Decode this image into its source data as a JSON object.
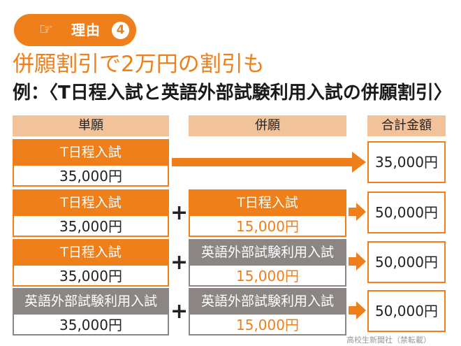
{
  "badge": {
    "hand_icon": "☞",
    "label": "理由",
    "number": "4"
  },
  "headline": "併願割引で2万円の割引も",
  "example": "例：〈T日程入試と英語外部試験利用入試の併願割引〉",
  "columns": {
    "single": "単願",
    "combined": "併願",
    "total": "合計金額"
  },
  "rows": [
    {
      "single": {
        "name": "T日程入試",
        "price": "35,000円"
      },
      "total": "35,000円"
    },
    {
      "single": {
        "name": "T日程入試",
        "price": "35,000円"
      },
      "combined": {
        "name": "T日程入試",
        "price": "15,000円"
      },
      "plus": "+",
      "total": "50,000円"
    },
    {
      "single": {
        "name": "T日程入試",
        "price": "35,000円"
      },
      "combined": {
        "name": "英語外部試験利用入試",
        "price": "15,000円"
      },
      "plus": "+",
      "total": "50,000円"
    },
    {
      "single": {
        "name": "英語外部試験利用入試",
        "price": "35,000円"
      },
      "combined": {
        "name": "英語外部試験利用入試",
        "price": "15,000円"
      },
      "plus": "+",
      "total": "50,000円"
    }
  ],
  "footer": "高校生新聞社（禁転載）",
  "colors": {
    "accent": "#ef7f1a",
    "header_bg": "#f2c39a",
    "gray": "#8b8584"
  }
}
